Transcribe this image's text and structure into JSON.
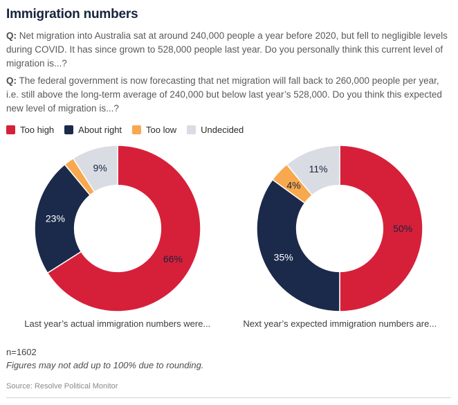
{
  "page": {
    "title": "Immigration numbers"
  },
  "questions": [
    {
      "prefix": "Q:",
      "text": "Net migration into Australia sat at around 240,000 people a year before 2020, but fell to negligible levels during COVID. It has since grown to 528,000 people last year. Do you personally think this current level of migration is...?"
    },
    {
      "prefix": "Q:",
      "text": "The federal government is now forecasting that net migration will fall back to 260,000 people per year, i.e. still above the long-term average of 240,000 but below last year’s 528,000. Do you think this expected new level of migration is...?"
    }
  ],
  "legend": {
    "items": [
      {
        "label": "Too high",
        "color": "#d6203a"
      },
      {
        "label": "About right",
        "color": "#1b2a4a"
      },
      {
        "label": "Too low",
        "color": "#f8a84e"
      },
      {
        "label": "Undecided",
        "color": "#d9dde3"
      }
    ]
  },
  "chart_data": [
    {
      "type": "pie",
      "subtype": "donut",
      "title": "Last year’s actual immigration numbers were...",
      "categories": [
        "Too high",
        "About right",
        "Too low",
        "Undecided"
      ],
      "values": [
        66,
        23,
        2,
        9
      ],
      "data_labels": [
        "66%",
        "23%",
        "",
        "9%"
      ],
      "colors": [
        "#d6203a",
        "#1b2a4a",
        "#f8a84e",
        "#d9dde3"
      ],
      "label_colors": [
        "#16243d",
        "#ffffff",
        "#16243d",
        "#16243d"
      ],
      "start_angle_deg": 0,
      "direction": "clockwise",
      "inner_radius_ratio": 0.52,
      "legend_position": "top"
    },
    {
      "type": "pie",
      "subtype": "donut",
      "title": "Next year’s expected immigration numbers are...",
      "categories": [
        "Too high",
        "About right",
        "Too low",
        "Undecided"
      ],
      "values": [
        50,
        35,
        4,
        11
      ],
      "data_labels": [
        "50%",
        "35%",
        "4%",
        "11%"
      ],
      "colors": [
        "#d6203a",
        "#1b2a4a",
        "#f8a84e",
        "#d9dde3"
      ],
      "label_colors": [
        "#16243d",
        "#ffffff",
        "#16243d",
        "#16243d"
      ],
      "start_angle_deg": 0,
      "direction": "clockwise",
      "inner_radius_ratio": 0.52,
      "legend_position": "top"
    }
  ],
  "footer": {
    "n": "n=1602",
    "note": "Figures may not add up to 100% due to rounding.",
    "source": "Source: Resolve Political Monitor"
  }
}
